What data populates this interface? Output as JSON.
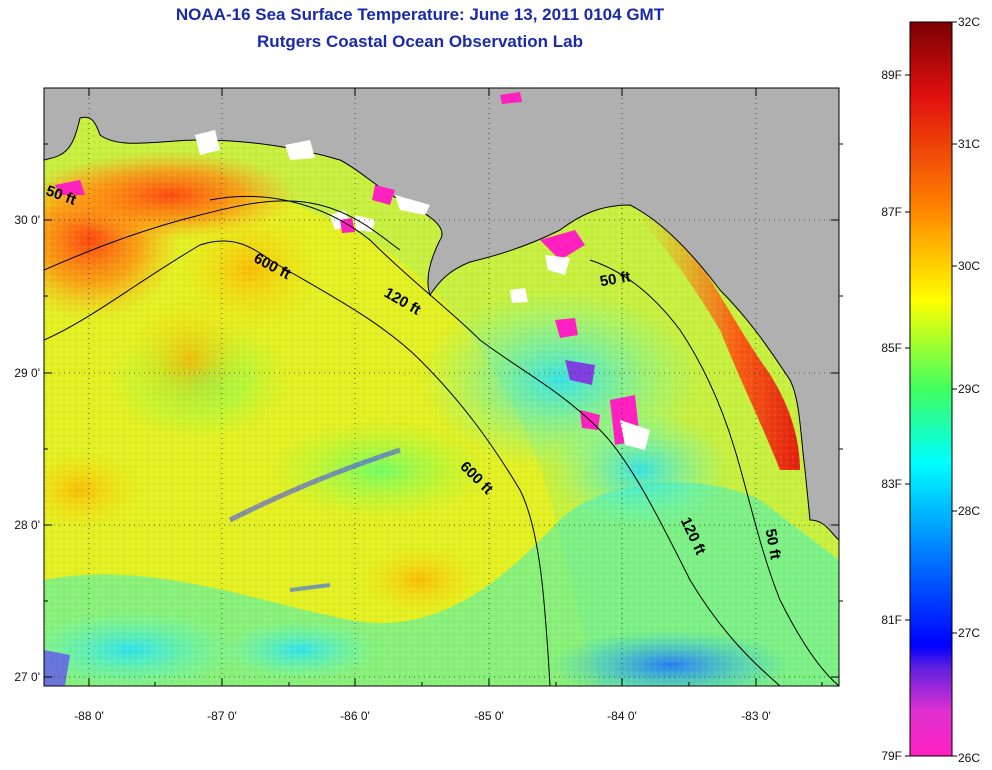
{
  "title": {
    "line1": "NOAA-16 Sea Surface Temperature:  June 13, 2011 0104 GMT",
    "line2": "Rutgers Coastal Ocean Observation Lab"
  },
  "map": {
    "lon_range": [
      -88.33,
      -82.33
    ],
    "lat_range": [
      26.92,
      30.85
    ],
    "lon_ticks": [
      {
        "value": -88,
        "label": "-88 0'"
      },
      {
        "value": -87,
        "label": "-87 0'"
      },
      {
        "value": -86,
        "label": "-86 0'"
      },
      {
        "value": -85,
        "label": "-85 0'"
      },
      {
        "value": -84,
        "label": "-84 0'"
      },
      {
        "value": -83,
        "label": "-83 0'"
      }
    ],
    "lat_ticks": [
      {
        "value": 30,
        "label": "30 0'"
      },
      {
        "value": 29,
        "label": "29 0'"
      },
      {
        "value": 28,
        "label": "28 0'"
      },
      {
        "value": 27,
        "label": "27 0'"
      }
    ],
    "contour_labels": [
      "50 ft",
      "600 ft",
      "120 ft",
      "50 ft",
      "600 ft",
      "120 ft",
      "50 ft"
    ],
    "land_color": "#b0b0b0",
    "graticule": "dotted"
  },
  "colorbar": {
    "celsius": [
      "32C",
      "31C",
      "30C",
      "29C",
      "28C",
      "27C",
      "26C"
    ],
    "fahrenheit": [
      "89F",
      "87F",
      "85F",
      "83F",
      "81F",
      "79F"
    ],
    "stops": [
      "#800000",
      "#e00000",
      "#ff7800",
      "#ffff00",
      "#40ff40",
      "#00ffff",
      "#0060ff",
      "#0000ff",
      "#8020e0",
      "#ff40c0",
      "#ff20c0"
    ]
  }
}
